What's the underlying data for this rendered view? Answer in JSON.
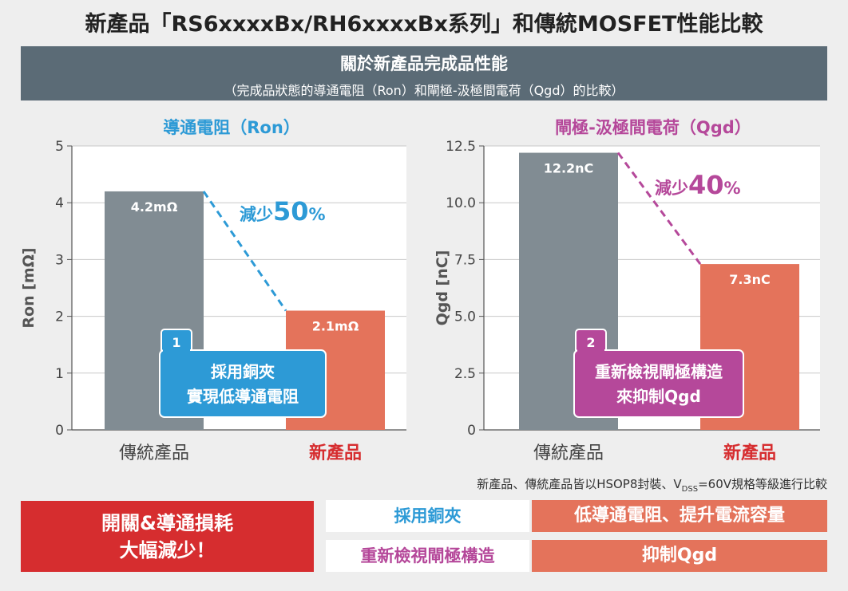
{
  "title": "新產品「RS6xxxxBx/RH6xxxxBx系列」和傳統MOSFET性能比較",
  "banner": {
    "line1": "關於新產品完成品性能",
    "line2": "（完成品狀態的導通電阻（Ron）和閘極-汲極間電荷（Qgd）的比較）"
  },
  "colors": {
    "gray_bar": "#818c93",
    "orange_bar": "#e4735b",
    "blue": "#2d9ad6",
    "magenta": "#b5489a",
    "red": "#d62d2f",
    "banner": "#5b6b76"
  },
  "chart_data": [
    {
      "type": "bar",
      "title": "導通電阻（Ron）",
      "ylabel": "Ron [mΩ]",
      "ylim": [
        0,
        5
      ],
      "yticks": [
        "0",
        "1",
        "2",
        "3",
        "4",
        "5"
      ],
      "categories": [
        "傳統產品",
        "新產品"
      ],
      "values": [
        4.2,
        2.1
      ],
      "data_labels": [
        "4.2mΩ",
        "2.1mΩ"
      ],
      "reduction_prefix": "減少",
      "reduction_value": "50",
      "reduction_unit": "%",
      "callout_number": "1",
      "callout_line1": "採用銅夾",
      "callout_line2": "實現低導通電阻",
      "grid": true
    },
    {
      "type": "bar",
      "title": "閘極-汲極間電荷（Qgd）",
      "ylabel": "Qgd [nC]",
      "ylim": [
        0,
        12.5
      ],
      "yticks": [
        "0",
        "2.5",
        "5.0",
        "7.5",
        "10.0",
        "12.5"
      ],
      "categories": [
        "傳統產品",
        "新產品"
      ],
      "values": [
        12.2,
        7.3
      ],
      "data_labels": [
        "12.2nC",
        "7.3nC"
      ],
      "reduction_prefix": "減少",
      "reduction_value": "40",
      "reduction_unit": "%",
      "callout_number": "2",
      "callout_line1": "重新檢視閘極構造",
      "callout_line2": "來抑制Qgd",
      "grid": true
    }
  ],
  "note": {
    "prefix": "新產品、傳統產品皆以HSOP8封裝、V",
    "sub": "DSS",
    "suffix": "=60V規格等級進行比較"
  },
  "summary": {
    "line1": "開關&導通損耗",
    "line2": "大幅減少！"
  },
  "rows": [
    {
      "left": "採用銅夾",
      "right": "低導通電阻、提升電流容量"
    },
    {
      "left": "重新檢視閘極構造",
      "right": "抑制Qgd"
    }
  ]
}
